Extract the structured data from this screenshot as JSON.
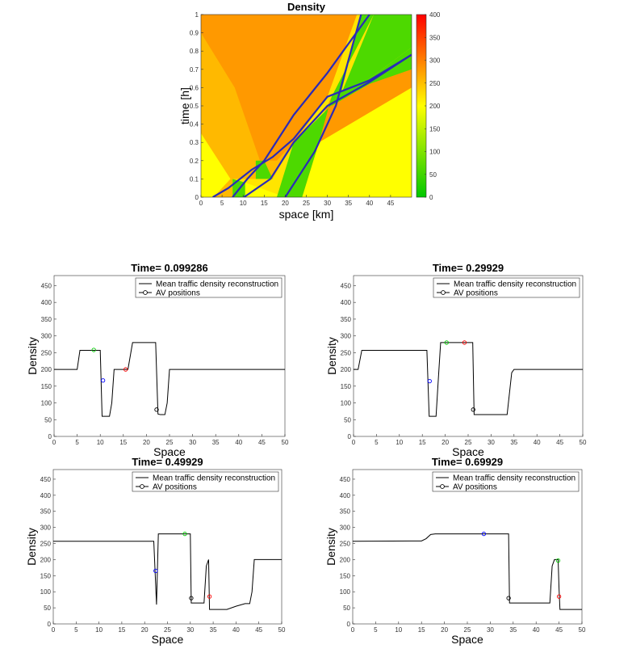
{
  "chart_data": [
    {
      "type": "heatmap",
      "title": "Density",
      "xlabel": "space [km]",
      "ylabel": "time [h]",
      "xlim": [
        0,
        50
      ],
      "ylim": [
        0,
        1
      ],
      "x_ticks": [
        0,
        5,
        10,
        15,
        20,
        25,
        30,
        35,
        40,
        45
      ],
      "y_ticks": [
        0,
        0.1,
        0.2,
        0.3,
        0.4,
        0.5,
        0.6,
        0.7,
        0.8,
        0.9,
        1
      ],
      "colorbar": {
        "min": 0,
        "max": 400,
        "ticks": [
          0,
          50,
          100,
          150,
          200,
          250,
          300,
          350,
          400
        ],
        "colors": [
          "#00c800",
          "#ffff00",
          "#ff0000"
        ]
      },
      "regions": [
        {
          "density": 200,
          "polygon": [
            [
              0,
              0
            ],
            [
              3,
              0
            ],
            [
              7,
              0.1
            ],
            [
              0,
              0.35
            ]
          ]
        },
        {
          "density": 255,
          "polygon": [
            [
              3,
              0
            ],
            [
              7.5,
              0
            ],
            [
              7.5,
              0.1
            ],
            [
              7,
              0.1
            ]
          ]
        },
        {
          "density": 60,
          "polygon": [
            [
              7.5,
              0
            ],
            [
              10.5,
              0
            ],
            [
              10.5,
              0.08
            ],
            [
              7.5,
              0.1
            ]
          ]
        },
        {
          "density": 200,
          "polygon": [
            [
              10.5,
              0
            ],
            [
              20,
              0
            ],
            [
              10.5,
              0.08
            ]
          ]
        },
        {
          "density": 280,
          "polygon": [
            [
              20,
              0
            ],
            [
              50,
              0
            ],
            [
              50,
              0.7
            ],
            [
              40,
              0.65
            ],
            [
              31,
              0.55
            ],
            [
              24,
              0.2
            ],
            [
              20,
              0
            ]
          ]
        },
        {
          "density": 200,
          "polygon": [
            [
              24,
              0
            ],
            [
              50,
              0
            ],
            [
              50,
              0.6
            ],
            [
              28,
              0.3
            ]
          ]
        },
        {
          "density": 60,
          "polygon": [
            [
              18,
              0
            ],
            [
              24,
              0
            ],
            [
              28,
              0.3
            ],
            [
              31,
              0.55
            ],
            [
              41,
              1
            ],
            [
              38,
              1
            ],
            [
              33,
              0.55
            ],
            [
              22,
              0.3
            ]
          ]
        },
        {
          "density": 60,
          "polygon": [
            [
              31,
              0.55
            ],
            [
              40,
              0.65
            ],
            [
              50,
              0.82
            ],
            [
              50,
              0.7
            ],
            [
              40,
              0.62
            ],
            [
              31,
              0.5
            ]
          ]
        },
        {
          "density": 255,
          "polygon": [
            [
              0,
              0.35
            ],
            [
              7,
              0.1
            ],
            [
              17,
              0.1
            ],
            [
              22,
              0.3
            ],
            [
              30,
              0.55
            ],
            [
              37,
              1
            ],
            [
              0,
              1
            ]
          ]
        },
        {
          "density": 280,
          "polygon": [
            [
              5,
              1
            ],
            [
              37,
              1
            ],
            [
              30,
              0.55
            ],
            [
              22,
              0.3
            ],
            [
              18,
              0.2
            ],
            [
              14,
              0.2
            ],
            [
              8,
              0.6
            ],
            [
              0,
              0.9
            ],
            [
              0,
              1
            ]
          ]
        },
        {
          "density": 60,
          "polygon": [
            [
              13,
              0.1
            ],
            [
              17,
              0.1
            ],
            [
              15,
              0.2
            ],
            [
              13,
              0.2
            ]
          ]
        },
        {
          "density": 60,
          "polygon": [
            [
              41,
              1
            ],
            [
              50,
              1
            ],
            [
              50,
              0.82
            ],
            [
              40,
              0.65
            ],
            [
              33,
              0.55
            ]
          ]
        }
      ],
      "trajectories": [
        [
          [
            2.8,
            0
          ],
          [
            6.5,
            0.05
          ],
          [
            12,
            0.15
          ],
          [
            17,
            0.22
          ],
          [
            22,
            0.32
          ],
          [
            30,
            0.55
          ],
          [
            40,
            0.64
          ],
          [
            50,
            0.78
          ]
        ],
        [
          [
            7.5,
            0
          ],
          [
            11,
            0.1
          ],
          [
            15,
            0.2
          ],
          [
            22,
            0.45
          ],
          [
            30,
            0.68
          ],
          [
            40,
            1
          ]
        ],
        [
          [
            10.2,
            0
          ],
          [
            16.5,
            0.1
          ],
          [
            22,
            0.3
          ],
          [
            30,
            0.5
          ],
          [
            40,
            0.63
          ],
          [
            50,
            0.78
          ]
        ],
        [
          [
            20,
            0
          ],
          [
            27,
            0.25
          ],
          [
            32,
            0.5
          ],
          [
            38,
            1
          ]
        ]
      ]
    },
    {
      "type": "line",
      "title": "Time= 0.099286",
      "xlabel": "Space",
      "ylabel": "Density",
      "xlim": [
        0,
        50
      ],
      "ylim": [
        0,
        480
      ],
      "x_ticks": [
        0,
        5,
        10,
        15,
        20,
        25,
        30,
        35,
        40,
        45,
        50
      ],
      "y_ticks": [
        0,
        50,
        100,
        150,
        200,
        250,
        300,
        350,
        400,
        450
      ],
      "series": [
        {
          "name": "Mean traffic density reconstruction",
          "x": [
            0,
            5,
            5.6,
            10,
            10.4,
            11,
            12,
            12.5,
            13,
            16,
            17,
            17.5,
            22,
            22.5,
            23,
            24,
            24.5,
            25,
            50
          ],
          "y": [
            200,
            200,
            257,
            257,
            60,
            60,
            60,
            100,
            200,
            200,
            280,
            280,
            280,
            67,
            65,
            65,
            100,
            200,
            200
          ]
        }
      ],
      "av_positions": [
        {
          "x": 8.6,
          "y": 258,
          "color": "#00cc00"
        },
        {
          "x": 10.6,
          "y": 167,
          "color": "#0000ff"
        },
        {
          "x": 15.5,
          "y": 200,
          "color": "#ff0000"
        },
        {
          "x": 22.2,
          "y": 80,
          "color": "#000000"
        }
      ],
      "legend": [
        "Mean traffic density reconstruction",
        "AV positions"
      ]
    },
    {
      "type": "line",
      "title": "Time= 0.29929",
      "xlabel": "Space",
      "ylabel": "Density",
      "xlim": [
        0,
        50
      ],
      "ylim": [
        0,
        480
      ],
      "x_ticks": [
        0,
        5,
        10,
        15,
        20,
        25,
        30,
        35,
        40,
        45,
        50
      ],
      "y_ticks": [
        0,
        50,
        100,
        150,
        200,
        250,
        300,
        350,
        400,
        450
      ],
      "series": [
        {
          "name": "Mean traffic density reconstruction",
          "x": [
            0,
            1,
            1.8,
            16,
            16.5,
            17,
            18,
            18.4,
            19,
            26,
            26.3,
            27,
            33.5,
            34.5,
            35,
            50
          ],
          "y": [
            200,
            200,
            257,
            257,
            60,
            60,
            60,
            150,
            280,
            280,
            65,
            65,
            65,
            190,
            200,
            200
          ]
        }
      ],
      "av_positions": [
        {
          "x": 16.6,
          "y": 165,
          "color": "#0000ff"
        },
        {
          "x": 20.3,
          "y": 280,
          "color": "#00cc00"
        },
        {
          "x": 24.2,
          "y": 280,
          "color": "#ff0000"
        },
        {
          "x": 26.1,
          "y": 80,
          "color": "#000000"
        }
      ],
      "legend": [
        "Mean traffic density reconstruction",
        "AV positions"
      ]
    },
    {
      "type": "line",
      "title": "Time= 0.49929",
      "xlabel": "Space",
      "ylabel": "Density",
      "xlim": [
        0,
        50
      ],
      "ylim": [
        0,
        480
      ],
      "x_ticks": [
        0,
        5,
        10,
        15,
        20,
        25,
        30,
        35,
        40,
        45,
        50
      ],
      "y_ticks": [
        0,
        50,
        100,
        150,
        200,
        250,
        300,
        350,
        400,
        450
      ],
      "series": [
        {
          "name": "Mean traffic density reconstruction",
          "x": [
            0,
            22,
            22.6,
            23,
            30,
            30.2,
            31,
            33,
            33.5,
            34,
            34.2,
            35,
            38,
            40,
            42,
            43,
            43.5,
            44,
            50
          ],
          "y": [
            257,
            257,
            60,
            280,
            280,
            65,
            65,
            65,
            180,
            200,
            45,
            45,
            45,
            55,
            63,
            63,
            100,
            200,
            200
          ]
        }
      ],
      "av_positions": [
        {
          "x": 22.4,
          "y": 165,
          "color": "#0000ff"
        },
        {
          "x": 28.8,
          "y": 280,
          "color": "#00cc00"
        },
        {
          "x": 30.2,
          "y": 80,
          "color": "#000000"
        },
        {
          "x": 34.2,
          "y": 85,
          "color": "#ff0000"
        }
      ],
      "legend": [
        "Mean traffic density reconstruction",
        "AV positions"
      ]
    },
    {
      "type": "line",
      "title": "Time= 0.69929",
      "xlabel": "Space",
      "ylabel": "Density",
      "xlim": [
        0,
        50
      ],
      "ylim": [
        0,
        480
      ],
      "x_ticks": [
        0,
        5,
        10,
        15,
        20,
        25,
        30,
        35,
        40,
        45,
        50
      ],
      "y_ticks": [
        0,
        50,
        100,
        150,
        200,
        250,
        300,
        350,
        400,
        450
      ],
      "series": [
        {
          "name": "Mean traffic density reconstruction",
          "x": [
            0,
            15,
            16,
            17,
            18,
            34,
            34.2,
            35,
            43,
            43.5,
            44,
            44.8,
            45,
            45.2,
            50
          ],
          "y": [
            257,
            258,
            265,
            278,
            280,
            280,
            65,
            65,
            65,
            180,
            200,
            200,
            110,
            45,
            45
          ]
        }
      ],
      "av_positions": [
        {
          "x": 28.6,
          "y": 280,
          "color": "#0000ff"
        },
        {
          "x": 34,
          "y": 80,
          "color": "#000000"
        },
        {
          "x": 44.8,
          "y": 197,
          "color": "#00cc00"
        },
        {
          "x": 45,
          "y": 85,
          "color": "#ff0000"
        }
      ],
      "legend": [
        "Mean traffic density reconstruction",
        "AV positions"
      ]
    }
  ]
}
